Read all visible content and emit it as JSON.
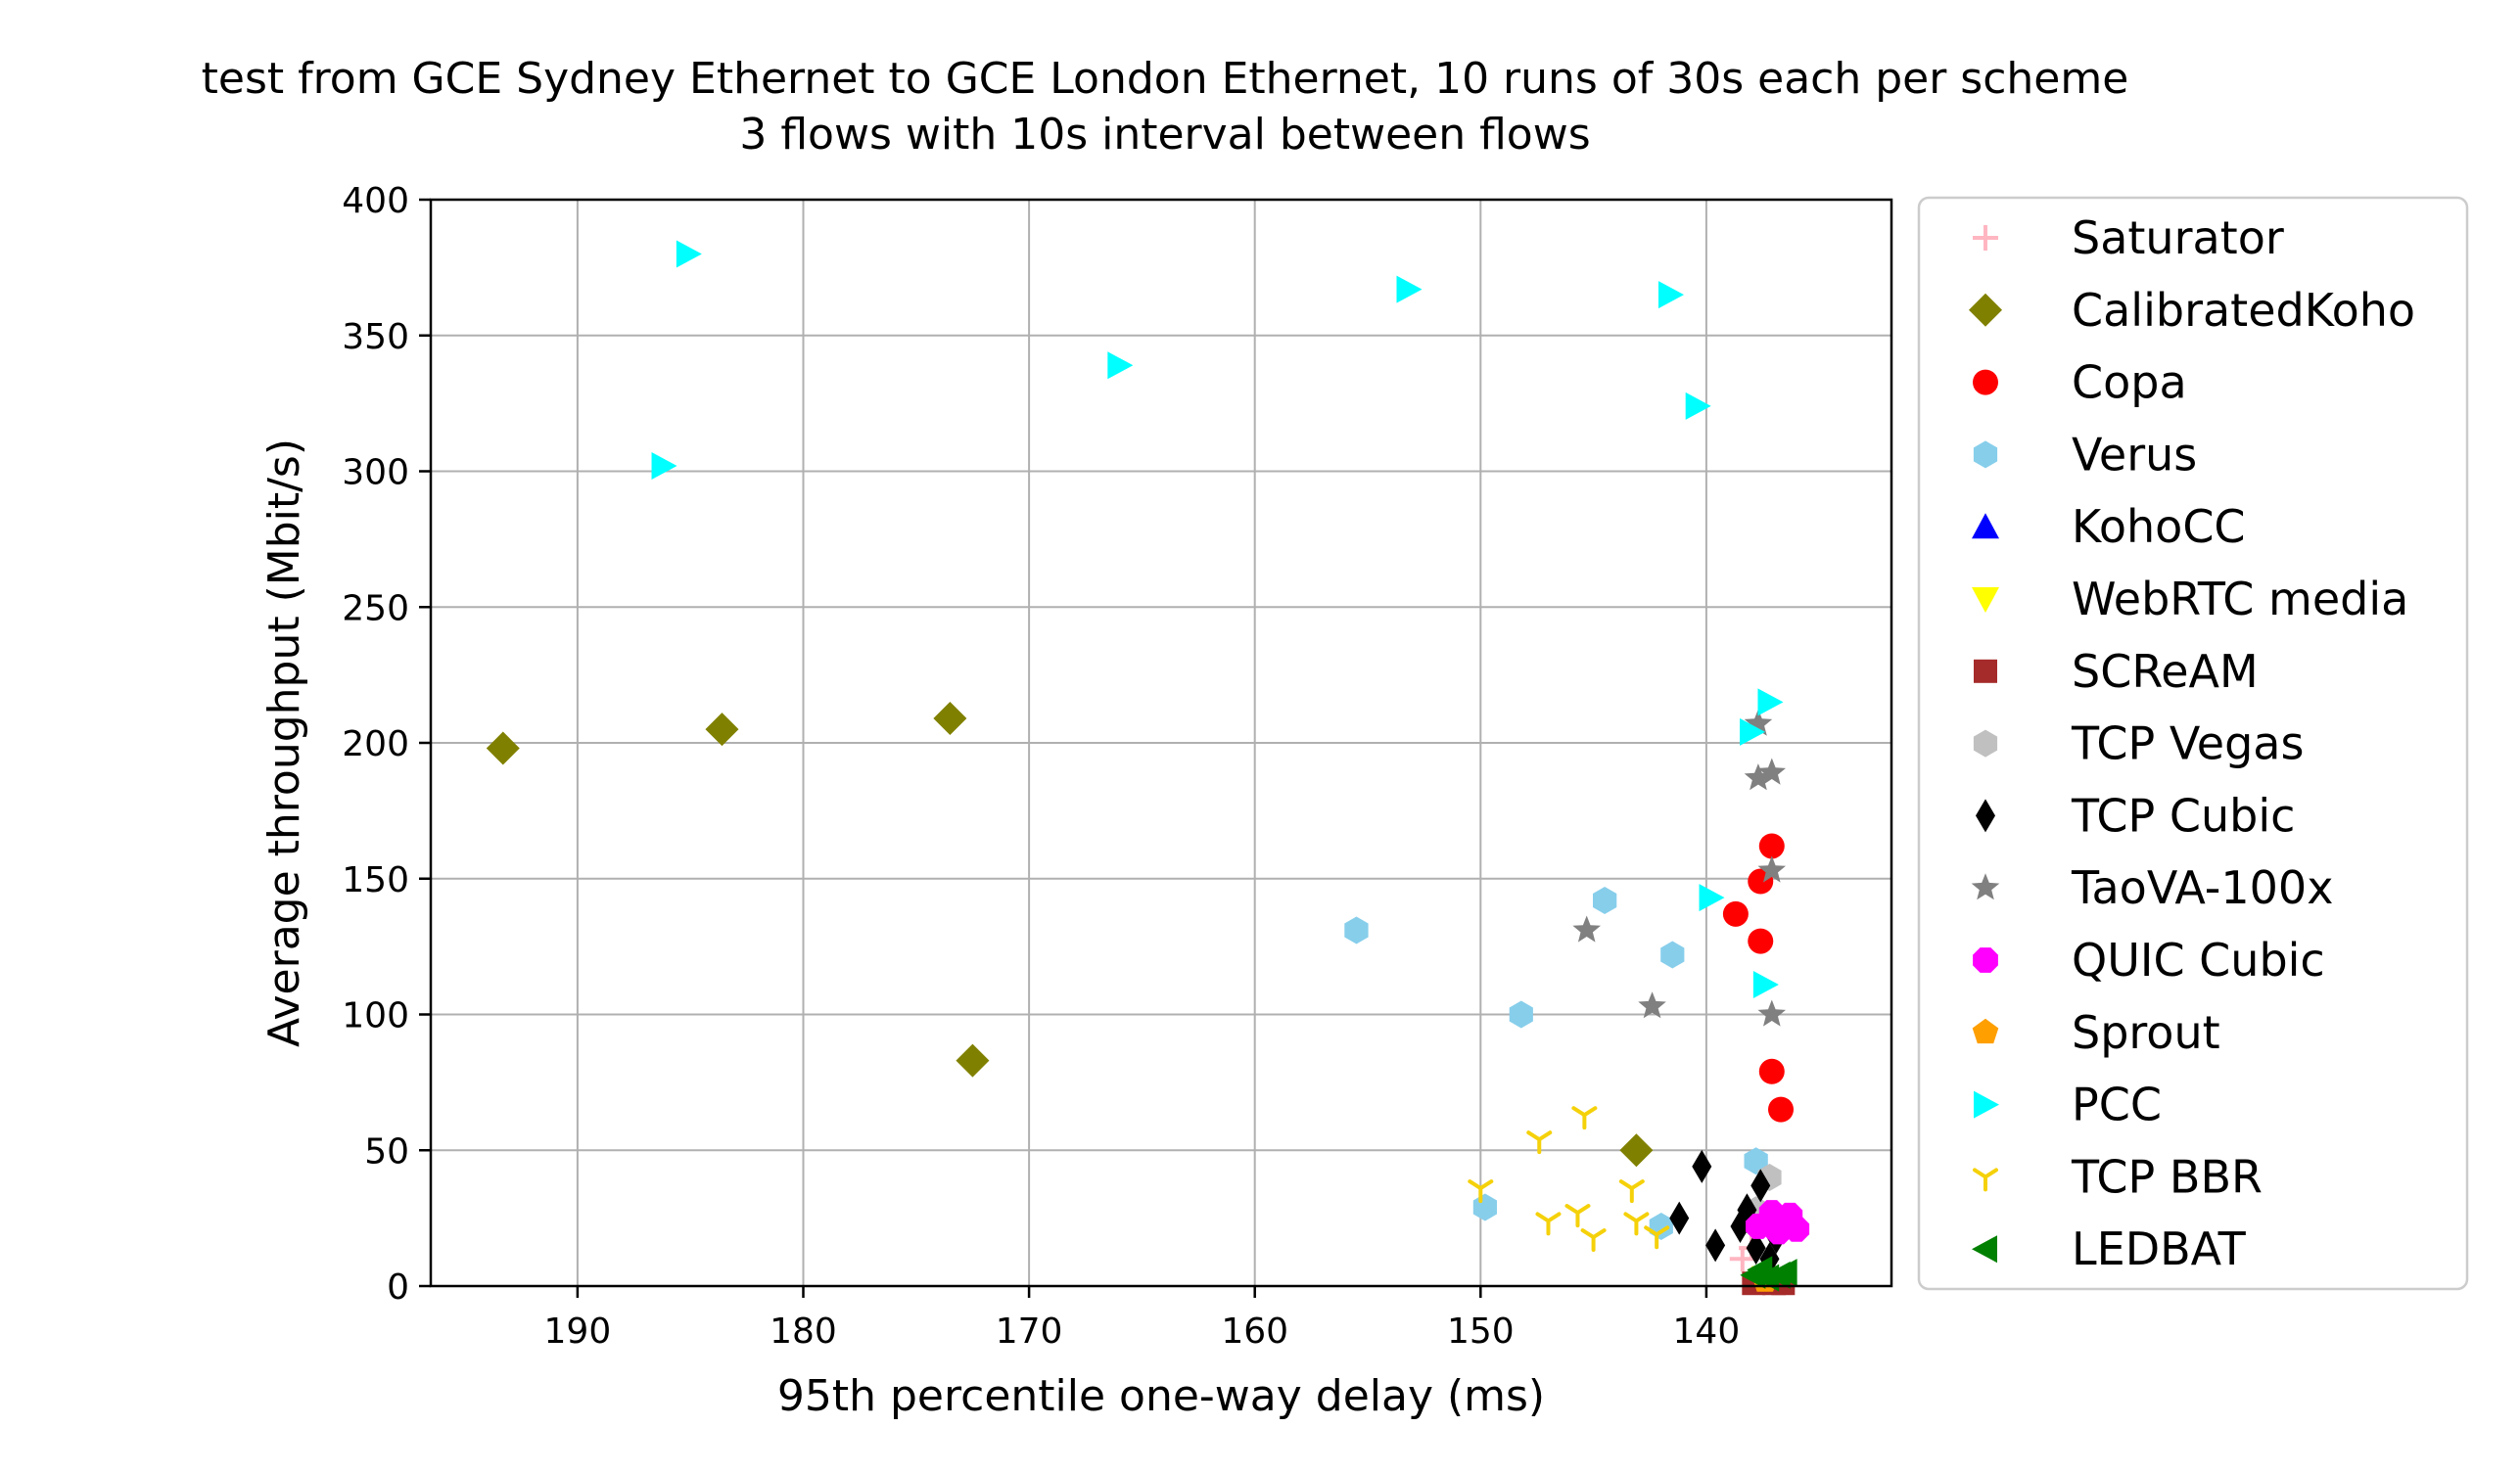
{
  "chart_data": {
    "type": "scatter",
    "title": "test from GCE Sydney Ethernet to GCE London Ethernet, 10 runs of 30s each per scheme",
    "subtitle": "3 flows with 10s interval between flows",
    "xlabel": "95th percentile one-way delay (ms)",
    "ylabel": "Average throughput (Mbit/s)",
    "xlim": [
      196.5,
      131.8
    ],
    "ylim": [
      0,
      400
    ],
    "x_inverted": true,
    "grid": true,
    "legend_position": "outside-right",
    "xticks": [
      190,
      180,
      170,
      160,
      150,
      140
    ],
    "xtick_labels": [
      "190",
      "180",
      "170",
      "160",
      "150",
      "140"
    ],
    "yticks": [
      0,
      50,
      100,
      150,
      200,
      250,
      300,
      350,
      400
    ],
    "ytick_labels": [
      "0",
      "50",
      "100",
      "150",
      "200",
      "250",
      "300",
      "350",
      "400"
    ],
    "series": [
      {
        "name": "Saturator",
        "marker": "plus",
        "color": "#ffb6c1",
        "points": [
          [
            138.4,
            10
          ],
          [
            138.0,
            14
          ]
        ]
      },
      {
        "name": "CalibratedKoho",
        "marker": "diamond",
        "color": "#808000",
        "points": [
          [
            193.3,
            198
          ],
          [
            183.6,
            205
          ],
          [
            173.5,
            209
          ],
          [
            172.5,
            83
          ],
          [
            143.1,
            50
          ]
        ]
      },
      {
        "name": "Copa",
        "marker": "circle",
        "color": "#ff0000",
        "points": [
          [
            137.1,
            162
          ],
          [
            138.7,
            137
          ],
          [
            137.6,
            149
          ],
          [
            137.6,
            127
          ],
          [
            137.1,
            79
          ],
          [
            136.7,
            65
          ]
        ]
      },
      {
        "name": "Verus",
        "marker": "hexagon",
        "color": "#87ceeb",
        "points": [
          [
            155.5,
            131
          ],
          [
            144.5,
            142
          ],
          [
            148.2,
            100
          ],
          [
            141.5,
            122
          ],
          [
            149.8,
            29
          ],
          [
            142.0,
            22
          ],
          [
            137.8,
            46
          ]
        ]
      },
      {
        "name": "KohoCC",
        "marker": "triangle-up",
        "color": "#0000ff",
        "points": [
          [
            137.5,
            2
          ]
        ]
      },
      {
        "name": "WebRTC media",
        "marker": "triangle-down",
        "color": "#ffff00",
        "points": [
          [
            137.4,
            3
          ]
        ]
      },
      {
        "name": "SCReAM",
        "marker": "square",
        "color": "#a52a2a",
        "points": [
          [
            137.9,
            1
          ],
          [
            137.0,
            1
          ],
          [
            136.6,
            1
          ]
        ]
      },
      {
        "name": "TCP Vegas",
        "marker": "hexagon",
        "color": "#c0c0c0",
        "points": [
          [
            137.2,
            40
          ],
          [
            137.8,
            28
          ]
        ]
      },
      {
        "name": "TCP Cubic",
        "marker": "thin-diamond",
        "color": "#000000",
        "points": [
          [
            140.2,
            44
          ],
          [
            141.2,
            25
          ],
          [
            139.6,
            15
          ],
          [
            138.5,
            22
          ],
          [
            138.2,
            28
          ],
          [
            137.6,
            37
          ],
          [
            137.8,
            14
          ],
          [
            137.2,
            10
          ],
          [
            136.9,
            18
          ]
        ]
      },
      {
        "name": "TaoVA-100x",
        "marker": "star",
        "color": "#808080",
        "points": [
          [
            137.7,
            207
          ],
          [
            137.1,
            189
          ],
          [
            137.7,
            187
          ],
          [
            137.1,
            153
          ],
          [
            145.3,
            131
          ],
          [
            142.4,
            103
          ],
          [
            137.1,
            100
          ]
        ]
      },
      {
        "name": "QUIC Cubic",
        "marker": "octagon",
        "color": "#ff00ff",
        "points": [
          [
            137.2,
            24
          ],
          [
            136.6,
            22
          ],
          [
            136.0,
            21
          ],
          [
            136.3,
            26
          ],
          [
            137.1,
            27
          ],
          [
            137.7,
            22
          ],
          [
            136.8,
            20
          ],
          [
            136.4,
            23
          ]
        ]
      },
      {
        "name": "Sprout",
        "marker": "pentagon",
        "color": "#ff9f00",
        "points": [
          [
            137.4,
            2
          ]
        ]
      },
      {
        "name": "PCC",
        "marker": "triangle-right",
        "color": "#00ffff",
        "points": [
          [
            185.1,
            380
          ],
          [
            186.2,
            302
          ],
          [
            166.0,
            339
          ],
          [
            153.2,
            367
          ],
          [
            141.6,
            365
          ],
          [
            140.4,
            324
          ],
          [
            137.2,
            215
          ],
          [
            138.0,
            204
          ],
          [
            139.8,
            143
          ],
          [
            137.4,
            111
          ]
        ]
      },
      {
        "name": "TCP BBR",
        "marker": "tri-down",
        "color": "#f5d10a",
        "points": [
          [
            150.0,
            36
          ],
          [
            147.4,
            54
          ],
          [
            145.4,
            63
          ],
          [
            143.3,
            36
          ],
          [
            147.0,
            24
          ],
          [
            145.7,
            27
          ],
          [
            145.0,
            18
          ],
          [
            143.1,
            24
          ],
          [
            142.2,
            19
          ]
        ]
      },
      {
        "name": "LEDBAT",
        "marker": "triangle-left",
        "color": "#008000",
        "points": [
          [
            137.9,
            4
          ],
          [
            137.3,
            3
          ],
          [
            136.8,
            4
          ],
          [
            136.5,
            5
          ],
          [
            137.6,
            6
          ]
        ]
      }
    ]
  }
}
